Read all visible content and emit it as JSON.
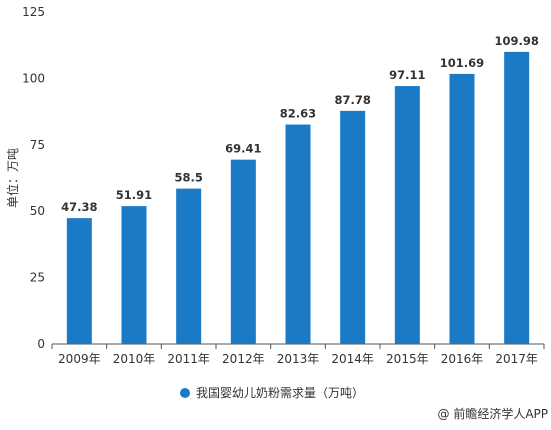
{
  "chart_data": {
    "type": "bar",
    "categories": [
      "2009年",
      "2010年",
      "2011年",
      "2012年",
      "2013年",
      "2014年",
      "2015年",
      "2016年",
      "2017年"
    ],
    "series": [
      {
        "name": "我国婴幼儿奶粉需求量（万吨）",
        "values": [
          47.38,
          51.91,
          58.5,
          69.41,
          82.63,
          87.78,
          97.11,
          101.69,
          109.98
        ],
        "color": "#1a7ac6"
      }
    ],
    "data_labels": [
      "47.38",
      "51.91",
      "58.5",
      "69.41",
      "82.63",
      "87.78",
      "97.11",
      "101.69",
      "109.98"
    ],
    "ylabel": "单位：万吨",
    "xlabel": "",
    "ylim": [
      0,
      125
    ],
    "yticks": [
      0,
      25,
      50,
      75,
      100,
      125
    ],
    "grid": false,
    "legend_position": "bottom"
  },
  "source": "@ 前瞻经济学人APP",
  "colors": {
    "bar": "#1a7ac6",
    "axis": "#555555",
    "text": "#333333"
  }
}
